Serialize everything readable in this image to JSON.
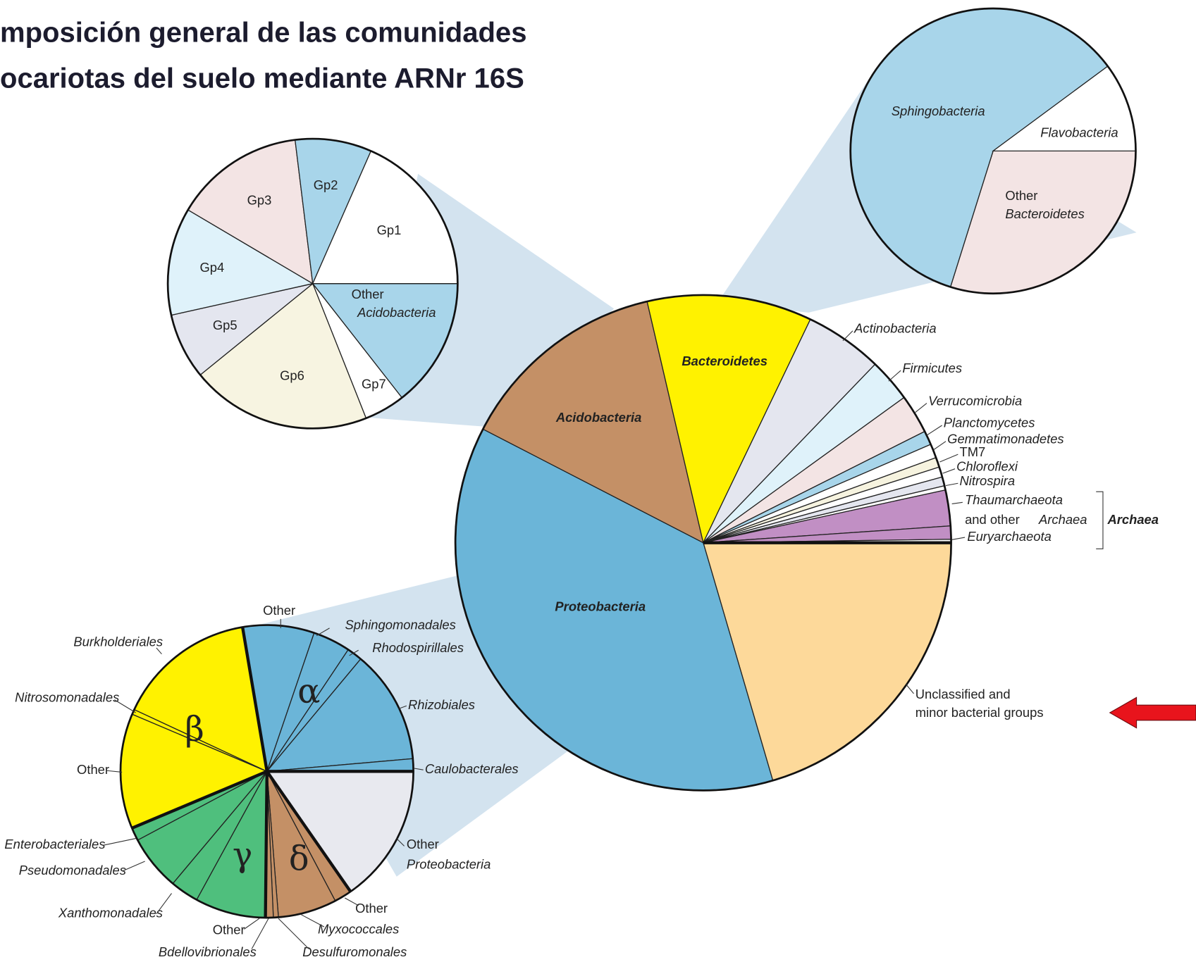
{
  "title": [
    "mposición general de las comunidades",
    "ocariotas del suelo mediante ARNr 16S"
  ],
  "main_pie": {
    "labels": [
      "Bacteroidetes",
      "Acidobacteria",
      "Proteobacteria",
      "Actinobacteria",
      "Firmicutes",
      "Verrucomicrobia",
      "Planctomycetes",
      "Gemmatimonadetes",
      "TM7",
      "Chloroflexi",
      "Nitrospira",
      "Thaumarchaeota",
      "and other",
      "Archaea",
      "Euryarchaeota",
      "Unclassified and",
      "minor bacterial groups"
    ],
    "group_label": "Archaea"
  },
  "acidobacteria_pie": {
    "labels": [
      "Gp1",
      "Gp2",
      "Gp3",
      "Gp4",
      "Gp5",
      "Gp6",
      "Gp7",
      "Other",
      "Acidobacteria"
    ]
  },
  "bacteroidetes_pie": {
    "labels": [
      "Sphingobacteria",
      "Flavobacteria",
      "Other",
      "Bacteroidetes"
    ]
  },
  "proteobacteria_pie": {
    "labels": [
      "Other",
      "Sphingomonadales",
      "Rhodospirillales",
      "Rhizobiales",
      "Caulobacterales",
      "Burkholderiales",
      "Nitrosomonadales",
      "Other",
      "Enterobacteriales",
      "Pseudomonadales",
      "Xanthomonadales",
      "Other",
      "Bdellovibrionales",
      "Desulfuromonales",
      "Myxococcales",
      "Other",
      "Other",
      "Proteobacteria"
    ],
    "greek": [
      "α",
      "β",
      "γ",
      "δ"
    ]
  }
}
